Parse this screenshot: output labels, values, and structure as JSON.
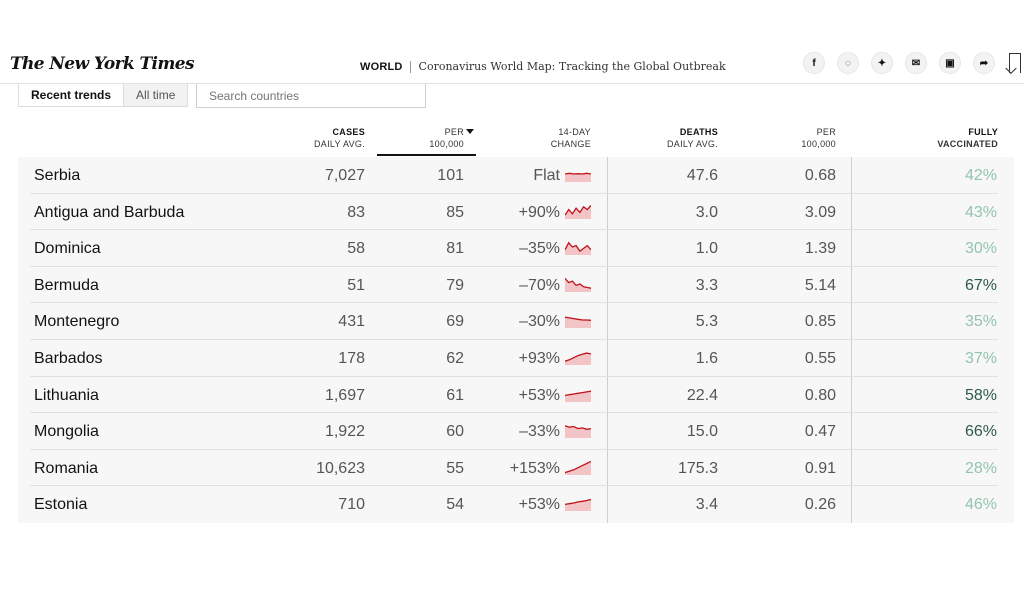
{
  "header": {
    "logo": "The New York Times",
    "section": "WORLD",
    "headline": "Coronavirus World Map: Tracking the Global Outbreak",
    "share_icons": [
      {
        "name": "facebook-icon",
        "glyph": "f"
      },
      {
        "name": "whatsapp-icon",
        "glyph": "◌"
      },
      {
        "name": "twitter-icon",
        "glyph": "✦"
      },
      {
        "name": "email-icon",
        "glyph": "✉"
      },
      {
        "name": "gift-icon",
        "glyph": "▣"
      },
      {
        "name": "share-icon",
        "glyph": "➦"
      }
    ]
  },
  "controls": {
    "tabs": [
      "Recent trends",
      "All time"
    ],
    "search_placeholder": "Search countries"
  },
  "columns": {
    "cases": [
      "CASES",
      "DAILY AVG."
    ],
    "per": [
      "PER",
      "100,000"
    ],
    "change": [
      "14-DAY",
      "CHANGE"
    ],
    "deaths": [
      "DEATHS",
      "DAILY AVG."
    ],
    "dper": [
      "PER",
      "100,000"
    ],
    "vax": [
      "FULLY",
      "VACCINATED"
    ]
  },
  "colors": {
    "spark_line": "#c0121b",
    "spark_fill": "#f2c4c6",
    "vax_high": "#2d5b47",
    "vax_low": "#93c4ad"
  },
  "rows": [
    {
      "country": "Serbia",
      "cases": "7,027",
      "per": "101",
      "change": "Flat",
      "trend": [
        0.5,
        0.55,
        0.5,
        0.52,
        0.5,
        0.55,
        0.5
      ],
      "deaths": "47.6",
      "dper": "0.68",
      "vax": "42%",
      "vax_high": false
    },
    {
      "country": "Antigua and Barbuda",
      "cases": "83",
      "per": "85",
      "change": "+90%",
      "trend": [
        0.2,
        0.6,
        0.3,
        0.7,
        0.4,
        0.8,
        0.6,
        0.9
      ],
      "deaths": "3.0",
      "dper": "3.09",
      "vax": "43%",
      "vax_high": false
    },
    {
      "country": "Dominica",
      "cases": "58",
      "per": "81",
      "change": "–35%",
      "trend": [
        0.3,
        0.8,
        0.5,
        0.6,
        0.2,
        0.4,
        0.6,
        0.3
      ],
      "deaths": "1.0",
      "dper": "1.39",
      "vax": "30%",
      "vax_high": false
    },
    {
      "country": "Bermuda",
      "cases": "51",
      "per": "79",
      "change": "–70%",
      "trend": [
        0.9,
        0.6,
        0.7,
        0.4,
        0.5,
        0.3,
        0.25,
        0.2
      ],
      "deaths": "3.3",
      "dper": "5.14",
      "vax": "67%",
      "vax_high": true
    },
    {
      "country": "Montenegro",
      "cases": "431",
      "per": "69",
      "change": "–30%",
      "trend": [
        0.7,
        0.65,
        0.6,
        0.55,
        0.5,
        0.5,
        0.48
      ],
      "deaths": "5.3",
      "dper": "0.85",
      "vax": "35%",
      "vax_high": false
    },
    {
      "country": "Barbados",
      "cases": "178",
      "per": "62",
      "change": "+93%",
      "trend": [
        0.2,
        0.3,
        0.45,
        0.6,
        0.7,
        0.78,
        0.72
      ],
      "deaths": "1.6",
      "dper": "0.55",
      "vax": "37%",
      "vax_high": false
    },
    {
      "country": "Lithuania",
      "cases": "1,697",
      "per": "61",
      "change": "+53%",
      "trend": [
        0.4,
        0.45,
        0.5,
        0.55,
        0.6,
        0.65,
        0.7
      ],
      "deaths": "22.4",
      "dper": "0.80",
      "vax": "58%",
      "vax_high": true
    },
    {
      "country": "Mongolia",
      "cases": "1,922",
      "per": "60",
      "change": "–33%",
      "trend": [
        0.8,
        0.7,
        0.75,
        0.6,
        0.65,
        0.55,
        0.6
      ],
      "deaths": "15.0",
      "dper": "0.47",
      "vax": "66%",
      "vax_high": true
    },
    {
      "country": "Romania",
      "cases": "10,623",
      "per": "55",
      "change": "+153%",
      "trend": [
        0.1,
        0.2,
        0.3,
        0.45,
        0.6,
        0.75,
        0.9
      ],
      "deaths": "175.3",
      "dper": "0.91",
      "vax": "28%",
      "vax_high": false
    },
    {
      "country": "Estonia",
      "cases": "710",
      "per": "54",
      "change": "+53%",
      "trend": [
        0.4,
        0.45,
        0.5,
        0.58,
        0.62,
        0.68,
        0.75
      ],
      "deaths": "3.4",
      "dper": "0.26",
      "vax": "46%",
      "vax_high": false
    }
  ]
}
